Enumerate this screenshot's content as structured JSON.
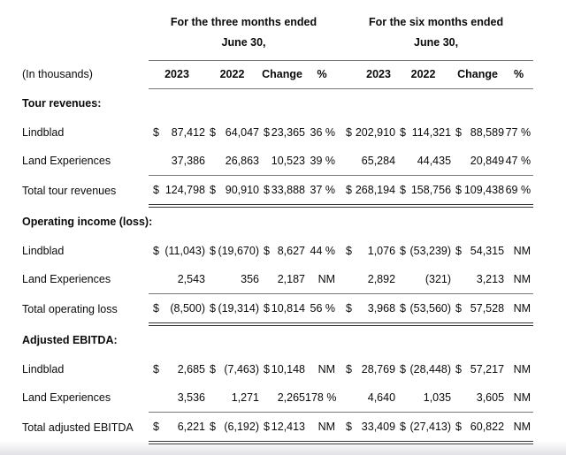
{
  "table": {
    "corner_label": "(In thousands)",
    "period_groups": [
      {
        "line1": "For the three months ended",
        "line2": "June 30,"
      },
      {
        "line1": "For the six months ended",
        "line2": "June 30,"
      }
    ],
    "column_headers": [
      "2023",
      "2022",
      "Change",
      "%"
    ],
    "sections": [
      {
        "header": "Tour revenues:",
        "rows": [
          {
            "label": "Lindblad",
            "values": [
              "$",
              "87,412",
              "$",
              "64,047",
              "$",
              "23,365",
              "36 %",
              "$",
              "202,910",
              "$",
              "114,321",
              "$",
              "88,589",
              "77 %"
            ]
          },
          {
            "label": "Land Experiences",
            "values": [
              "",
              "37,386",
              "",
              "26,863",
              "",
              "10,523",
              "39 %",
              "",
              "65,284",
              "",
              "44,435",
              "",
              "20,849",
              "47 %"
            ]
          }
        ],
        "total": {
          "label": "Total tour revenues",
          "values": [
            "$",
            "124,798",
            "$",
            "90,910",
            "$",
            "33,888",
            "37 %",
            "$",
            "268,194",
            "$",
            "158,756",
            "$",
            "109,438",
            "69 %"
          ]
        }
      },
      {
        "header": "Operating income (loss):",
        "rows": [
          {
            "label": "Lindblad",
            "values": [
              "$",
              "(11,043)",
              "$",
              "(19,670)",
              "$",
              "8,627",
              "44 %",
              "$",
              "1,076",
              "$",
              "(53,239)",
              "$",
              "54,315",
              "NM"
            ]
          },
          {
            "label": "Land Experiences",
            "values": [
              "",
              "2,543",
              "",
              "356",
              "",
              "2,187",
              "NM",
              "",
              "2,892",
              "",
              "(321)",
              "",
              "3,213",
              "NM"
            ]
          }
        ],
        "total": {
          "label": "Total operating loss",
          "values": [
            "$",
            "(8,500)",
            "$",
            "(19,314)",
            "$",
            "10,814",
            "56 %",
            "$",
            "3,968",
            "$",
            "(53,560)",
            "$",
            "57,528",
            "NM"
          ]
        }
      },
      {
        "header": "Adjusted EBITDA:",
        "rows": [
          {
            "label": "Lindblad",
            "values": [
              "$",
              "2,685",
              "$",
              "(7,463)",
              "$",
              "10,148",
              "NM",
              "$",
              "28,769",
              "$",
              "(28,448)",
              "$",
              "57,217",
              "NM"
            ]
          },
          {
            "label": "Land Experiences",
            "values": [
              "",
              "3,536",
              "",
              "1,271",
              "",
              "2,265",
              "178 %",
              "",
              "4,640",
              "",
              "1,035",
              "",
              "3,605",
              "NM"
            ]
          }
        ],
        "total": {
          "label": "Total adjusted EBITDA",
          "values": [
            "$",
            "6,221",
            "$",
            "(6,192)",
            "$",
            "12,413",
            "NM",
            "$",
            "33,409",
            "$",
            "(27,413)",
            "$",
            "60,822",
            "NM"
          ]
        }
      }
    ]
  },
  "colors": {
    "text": "#0a0a0a",
    "single_rule": "#777777",
    "double_rule": "#333333",
    "background": "#ffffff"
  }
}
